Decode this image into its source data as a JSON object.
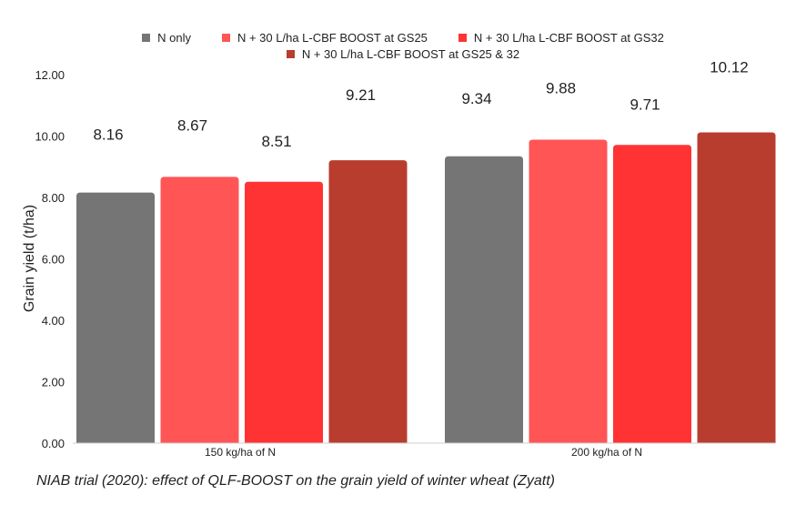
{
  "chart_data": {
    "type": "bar",
    "categories": [
      "150 kg/ha of N",
      "200 kg/ha of N"
    ],
    "series": [
      {
        "name": "N only",
        "color": "#757575",
        "values": [
          8.16,
          9.34
        ]
      },
      {
        "name": "N + 30 L/ha L-CBF BOOST at GS25",
        "color": "#ff5555",
        "values": [
          8.67,
          9.88
        ]
      },
      {
        "name": "N + 30 L/ha L-CBF BOOST at GS32",
        "color": "#ff3333",
        "values": [
          8.51,
          9.71
        ]
      },
      {
        "name": "N + 30 L/ha L-CBF BOOST at GS25 & 32",
        "color": "#b83d2f",
        "values": [
          9.21,
          10.12
        ]
      }
    ],
    "data_labels": [
      [
        "8.16",
        "9.34"
      ],
      [
        "8.67",
        "9.88"
      ],
      [
        "8.51",
        "9.71"
      ],
      [
        "9.21",
        "10.12"
      ]
    ],
    "ylabel": "Grain yield (t/ha)",
    "xlabel": "",
    "ylim": [
      0,
      12
    ],
    "yticks": [
      "0.00",
      "2.00",
      "4.00",
      "6.00",
      "8.00",
      "10.00",
      "12.00"
    ],
    "grid": false,
    "legend_position": "top"
  },
  "caption": "NIAB trial (2020): effect of QLF-BOOST on the grain yield of winter wheat (Zyatt)"
}
